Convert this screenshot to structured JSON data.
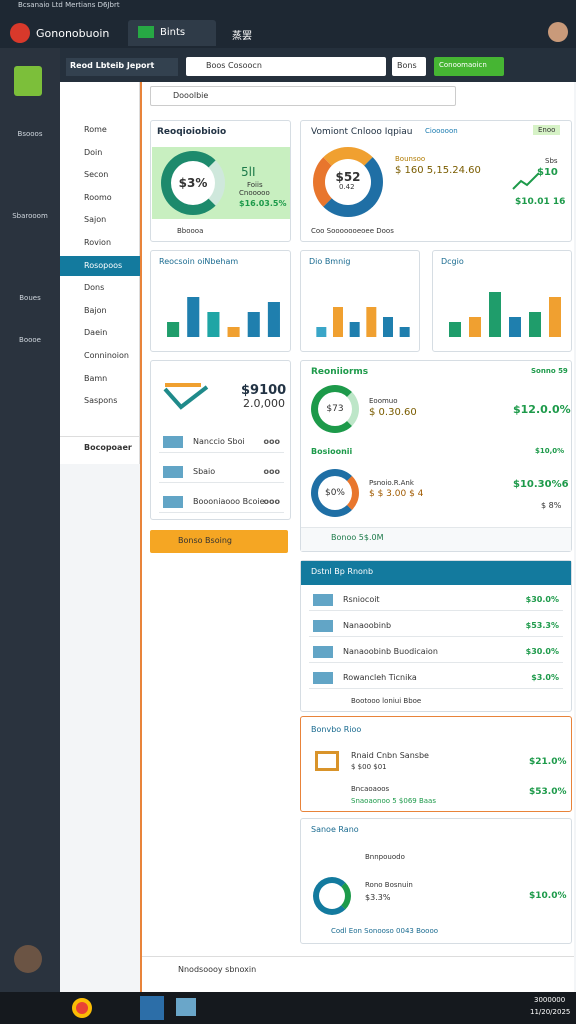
{
  "window": {
    "caption": "Bcsanaio Ltd Mertians D6Jbrt",
    "app": "Gononobuoin",
    "tab": "Bints",
    "tab2": "蒸罢"
  },
  "toolbar": {
    "report": "Reod Lbteib Jeport",
    "search": "Boos Cosoocn",
    "button": "Bons",
    "primary": "Conoomaoicn"
  },
  "sidebar": {
    "labels": [
      "Bsooos",
      "Sbarooom",
      "Boues",
      "Boooe"
    ]
  },
  "nav": {
    "items": [
      "Rome",
      "Doin",
      "Secon",
      "Roomo",
      "Sajon",
      "Rovion",
      "Rosopoos",
      "Dons",
      "Bajon",
      "Daein",
      "Conninoion",
      "Bamn",
      "Saspons"
    ],
    "alert": "Bocopoaer"
  },
  "address": "Dooolbie",
  "summary": {
    "title": "Reoqioiobioio",
    "donut": "$3%",
    "big": "5lI",
    "sub": "Foiis",
    "caption": "Cnooooo",
    "value": "$16.03.5%",
    "footer": "Bboooa"
  },
  "overview": {
    "title": "Vomiont Cnlooo Iqpiau",
    "link": "Ciooooon",
    "badge": "Enoo",
    "donut": "$52",
    "donut_sub": "0.42",
    "label": "Bounsoo",
    "value": "$ 160 5,15.24.60",
    "side": "Sbs",
    "side_value": "$10",
    "trend": "$10.01 16",
    "footer": "Coo Sooooooeoee Doos"
  },
  "charts": [
    {
      "title": "Reocsoin oiNbeham",
      "values": [
        3,
        8,
        5,
        2,
        5,
        7
      ],
      "colors": [
        "#1f9d6b",
        "#1f7fae",
        "#1fa5a5",
        "#f0a030",
        "#1f7fae",
        "#1f7fae"
      ]
    },
    {
      "title": "Dio Bmnig",
      "values": [
        2,
        6,
        3,
        6,
        4,
        2
      ],
      "colors": [
        "#3aa6c8",
        "#f0a030",
        "#1f7fae",
        "#f0a030",
        "#1f7fae",
        "#1f7fae"
      ]
    },
    {
      "title": "Dcgio",
      "values": [
        3,
        4,
        9,
        4,
        5,
        8
      ],
      "colors": [
        "#1f9d6b",
        "#f0a030",
        "#1f9d6b",
        "#1f7fae",
        "#1f9d6b",
        "#f0a030"
      ]
    }
  ],
  "left_card": {
    "value": "$9100",
    "sub": "2.0,000",
    "rows": [
      [
        "Nanccio Sboi",
        "ooo"
      ],
      [
        "Sbaio",
        "ooo"
      ],
      [
        "Boooniaooo Bcoie",
        "ooo"
      ]
    ]
  },
  "action": "Bonso Bsoing",
  "revenue": {
    "title": "Reoniiorms",
    "badge": "Sonno 59",
    "donut": "$73",
    "label": "Eoomuo",
    "value": "$ 0.30.60",
    "right": "$12.0.0%",
    "title2": "Bosioonii",
    "badge2": "$10,0%",
    "donut2": "$0%",
    "label2": "Psnoio.R.Ank",
    "value2": "$ $ 3.00 $ 4",
    "right2": "$10.30%6",
    "right3": "$ 8%",
    "footer": "Bonoo 5$.0M"
  },
  "detail": {
    "title": "Dstnl Bp Rnonb",
    "rows": [
      [
        "Rsniocoit",
        "$30.0%"
      ],
      [
        "Nanaoobinb",
        "$53.3%"
      ],
      [
        "Nanaoobinb Buodicaion",
        "$30.0%"
      ],
      [
        "Rowancleh Ticnika",
        "$3.0%"
      ]
    ],
    "footer": "Bootooo loniui Bboe"
  },
  "review": {
    "title": "Bonvbo Rioo",
    "row1": "Rnaid Cnbn Sansbe",
    "row1_sub": "$ $00 $01",
    "row1_value": "$21.0%",
    "row2": "Bncaoaoos",
    "row2_sub": "Snaoaonoo 5 $069 Baas",
    "row2_value": "$53.0%"
  },
  "sales": {
    "title": "Sanoe Rano",
    "row1": "Bnnpouodo",
    "row2": "Rono Bosnuin",
    "row2_sub": "$3.3%",
    "row2_value": "$10.0%",
    "footer": "Codl Eon Sonooso 0043 Boooo"
  },
  "status": "Nnodsoooy sbnoxin",
  "taskbar": {
    "time": "3000000",
    "date": "11/20/2025"
  }
}
